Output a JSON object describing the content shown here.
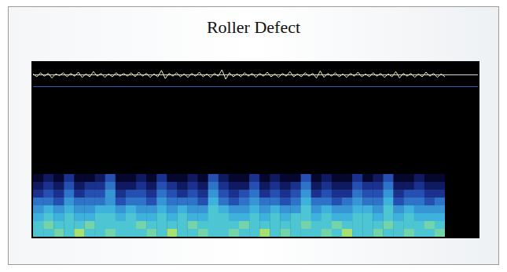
{
  "chart_data": [
    {
      "type": "line",
      "title": "Roller Defect",
      "color": "#f2eebc",
      "tick_labels": false,
      "values": [
        0.2,
        -0.3,
        0.4,
        -0.2,
        0.3,
        -0.5,
        0.2,
        -0.1,
        0.4,
        -0.3,
        0.3,
        -0.2,
        0.5,
        -0.4,
        0.2,
        -0.3,
        0.6,
        -0.2,
        0.3,
        -0.4,
        0.2,
        -0.3,
        0.4,
        -0.2,
        0.3,
        -0.2,
        0.4,
        -0.3,
        0.5,
        -0.2,
        0.3,
        -0.4,
        0.2,
        -0.3,
        0.8,
        -0.6,
        0.3,
        -0.2,
        0.4,
        -0.3,
        0.2,
        -0.4,
        0.3,
        -0.2,
        0.5,
        -0.3,
        0.2,
        -0.4,
        0.3,
        -0.2,
        0.9,
        -0.7,
        0.4,
        -0.3,
        0.2,
        -0.3,
        0.4,
        -0.2,
        0.3,
        -0.4,
        0.3,
        -0.2,
        0.5,
        -0.3,
        0.2,
        -0.4,
        0.3,
        -0.2,
        0.6,
        -0.3,
        0.2,
        -0.3,
        0.4,
        -0.2,
        0.3,
        -0.5,
        0.7,
        -0.4,
        0.3,
        -0.2,
        0.4,
        -0.3,
        0.2,
        -0.4,
        0.3,
        -0.2,
        0.5,
        -0.3,
        0.2,
        -0.3,
        0.4,
        -0.2,
        0.3,
        -0.4,
        0.2,
        -0.3,
        0.6,
        -0.5,
        0.3,
        -0.2,
        0.3,
        -0.4,
        0.2,
        -0.3,
        0.5,
        -0.2,
        0.3,
        -0.4,
        0.2,
        -0.3
      ]
    },
    {
      "type": "heatmap",
      "tick_labels": false,
      "cells": [
        [
          1,
          2,
          1,
          3,
          1,
          1,
          2,
          4,
          1,
          1,
          2,
          1,
          3,
          1,
          1,
          2,
          1,
          4,
          2,
          1,
          1,
          3,
          1,
          2,
          1,
          1,
          4,
          1,
          2,
          1,
          1,
          3,
          1,
          2,
          4,
          1,
          1,
          2,
          1,
          1
        ],
        [
          2,
          3,
          2,
          4,
          2,
          3,
          3,
          5,
          2,
          2,
          3,
          2,
          4,
          3,
          2,
          3,
          2,
          5,
          3,
          2,
          2,
          4,
          2,
          3,
          2,
          3,
          5,
          2,
          3,
          2,
          2,
          4,
          3,
          3,
          5,
          2,
          2,
          3,
          2,
          2
        ],
        [
          3,
          4,
          3,
          5,
          3,
          4,
          4,
          6,
          3,
          4,
          4,
          3,
          5,
          4,
          3,
          4,
          3,
          6,
          4,
          3,
          4,
          5,
          3,
          4,
          3,
          4,
          6,
          3,
          4,
          3,
          3,
          5,
          4,
          4,
          6,
          3,
          4,
          4,
          3,
          3
        ],
        [
          5,
          5,
          4,
          6,
          5,
          5,
          5,
          6,
          4,
          5,
          5,
          4,
          6,
          5,
          5,
          5,
          4,
          7,
          5,
          4,
          5,
          6,
          5,
          5,
          4,
          5,
          7,
          5,
          5,
          4,
          5,
          6,
          5,
          5,
          7,
          4,
          5,
          5,
          4,
          5
        ],
        [
          6,
          7,
          6,
          7,
          6,
          6,
          7,
          7,
          6,
          7,
          6,
          6,
          7,
          6,
          7,
          6,
          6,
          8,
          7,
          6,
          6,
          7,
          6,
          7,
          6,
          6,
          8,
          6,
          7,
          6,
          6,
          7,
          7,
          6,
          8,
          6,
          7,
          6,
          6,
          6
        ],
        [
          7,
          8,
          7,
          8,
          7,
          7,
          8,
          8,
          7,
          8,
          7,
          7,
          8,
          7,
          8,
          7,
          7,
          8,
          8,
          7,
          7,
          8,
          7,
          8,
          7,
          8,
          8,
          7,
          8,
          7,
          7,
          8,
          8,
          7,
          8,
          7,
          8,
          7,
          7,
          7
        ],
        [
          8,
          9,
          8,
          8,
          8,
          9,
          8,
          8,
          8,
          8,
          9,
          8,
          8,
          8,
          8,
          9,
          8,
          8,
          8,
          8,
          9,
          8,
          8,
          8,
          8,
          8,
          9,
          8,
          8,
          9,
          8,
          8,
          8,
          8,
          9,
          8,
          8,
          8,
          9,
          8
        ],
        [
          8,
          8,
          9,
          8,
          10,
          8,
          8,
          9,
          8,
          8,
          8,
          9,
          8,
          10,
          8,
          8,
          9,
          8,
          8,
          9,
          8,
          8,
          10,
          8,
          9,
          8,
          8,
          8,
          9,
          8,
          10,
          8,
          8,
          9,
          8,
          8,
          9,
          8,
          8,
          9
        ]
      ]
    }
  ]
}
